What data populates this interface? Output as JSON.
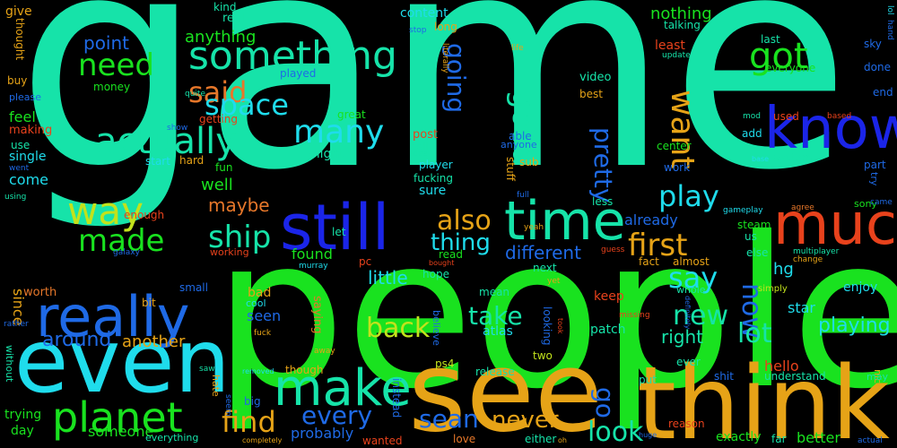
{
  "words": [
    {
      "text": "game",
      "color": "#16e3a9"
    },
    {
      "text": "people",
      "color": "#19e21f"
    },
    {
      "text": "see",
      "color": "#e6a317"
    },
    {
      "text": "think",
      "color": "#e6a317"
    },
    {
      "text": "even",
      "color": "#1fdcec"
    },
    {
      "text": "know",
      "color": "#1b25e8"
    },
    {
      "text": "still",
      "color": "#1b25e8"
    },
    {
      "text": "time",
      "color": "#16e3a9"
    },
    {
      "text": "much",
      "color": "#e8421c"
    },
    {
      "text": "really",
      "color": "#1f6ae6"
    },
    {
      "text": "make",
      "color": "#16e3a9"
    },
    {
      "text": "planet",
      "color": "#19e21f"
    },
    {
      "text": "actually",
      "color": "#16e3a9"
    },
    {
      "text": "something",
      "color": "#16e3a9"
    },
    {
      "text": "way",
      "color": "#c2e21c"
    },
    {
      "text": "made",
      "color": "#19e21f"
    },
    {
      "text": "need",
      "color": "#19e21f"
    },
    {
      "text": "said",
      "color": "#e6772a"
    },
    {
      "text": "space",
      "color": "#1fdcec"
    },
    {
      "text": "ship",
      "color": "#16e3a9"
    },
    {
      "text": "many",
      "color": "#1fdcec"
    },
    {
      "text": "got",
      "color": "#19e21f"
    },
    {
      "text": "want",
      "color": "#e6a317"
    },
    {
      "text": "good",
      "color": "#16e3a9"
    },
    {
      "text": "going",
      "color": "#1f6ae6"
    },
    {
      "text": "pretty",
      "color": "#1f6ae6"
    },
    {
      "text": "play",
      "color": "#1fdcec"
    },
    {
      "text": "first",
      "color": "#e6a317"
    },
    {
      "text": "say",
      "color": "#1fdcec"
    },
    {
      "text": "also",
      "color": "#e6a317"
    },
    {
      "text": "thing",
      "color": "#1fdcec"
    },
    {
      "text": "new",
      "color": "#16e3a9"
    },
    {
      "text": "now",
      "color": "#1f6ae6"
    },
    {
      "text": "lot",
      "color": "#16e3a9"
    },
    {
      "text": "back",
      "color": "#c2e21c"
    },
    {
      "text": "take",
      "color": "#16e3a9"
    },
    {
      "text": "find",
      "color": "#e6a317"
    },
    {
      "text": "every",
      "color": "#1f6ae6"
    },
    {
      "text": "sean",
      "color": "#1f6ae6"
    },
    {
      "text": "never",
      "color": "#e6a317"
    },
    {
      "text": "go",
      "color": "#1f6ae6"
    },
    {
      "text": "look",
      "color": "#16e3a9"
    },
    {
      "text": "playing",
      "color": "#1fdcec"
    },
    {
      "text": "right",
      "color": "#16e3a9"
    },
    {
      "text": "around",
      "color": "#1f6ae6"
    },
    {
      "text": "another",
      "color": "#e6a317"
    },
    {
      "text": "different",
      "color": "#1f6ae6"
    },
    {
      "text": "little",
      "color": "#1fdcec"
    },
    {
      "text": "found",
      "color": "#19e21f"
    },
    {
      "text": "maybe",
      "color": "#e6772a"
    },
    {
      "text": "well",
      "color": "#19e21f"
    },
    {
      "text": "point",
      "color": "#1f6ae6"
    },
    {
      "text": "anything",
      "color": "#19e21f"
    },
    {
      "text": "nothing",
      "color": "#19e21f"
    },
    {
      "text": "already",
      "color": "#1f6ae6"
    },
    {
      "text": "hg",
      "color": "#1fdcec"
    },
    {
      "text": "enjoy",
      "color": "#1fdcec"
    },
    {
      "text": "star",
      "color": "#1fdcec"
    },
    {
      "text": "hello",
      "color": "#e8421c"
    },
    {
      "text": "better",
      "color": "#19e21f"
    },
    {
      "text": "exactly",
      "color": "#19e21f"
    },
    {
      "text": "probably",
      "color": "#1f6ae6"
    },
    {
      "text": "someone",
      "color": "#19e21f"
    },
    {
      "text": "trying",
      "color": "#19e21f"
    },
    {
      "text": "day",
      "color": "#19e21f"
    },
    {
      "text": "since",
      "color": "#e6a317"
    },
    {
      "text": "worth",
      "color": "#e6772a"
    },
    {
      "text": "come",
      "color": "#1fdcec"
    },
    {
      "text": "feel",
      "color": "#19e21f"
    },
    {
      "text": "single",
      "color": "#1fdcec"
    },
    {
      "text": "making",
      "color": "#e8421c"
    },
    {
      "text": "use",
      "color": "#16e3a9"
    },
    {
      "text": "bad",
      "color": "#e6a317"
    },
    {
      "text": "seen",
      "color": "#1f6ae6"
    },
    {
      "text": "give",
      "color": "#e6a317"
    },
    {
      "text": "content",
      "color": "#1fdcec"
    },
    {
      "text": "kind",
      "color": "#16e3a9"
    },
    {
      "text": "real",
      "color": "#16e3a9"
    },
    {
      "text": "long",
      "color": "#e6a317"
    },
    {
      "text": "least",
      "color": "#e8421c"
    },
    {
      "text": "last",
      "color": "#16e3a9"
    },
    {
      "text": "everyone",
      "color": "#19e21f"
    },
    {
      "text": "used",
      "color": "#e8421c"
    },
    {
      "text": "add",
      "color": "#1fdcec"
    },
    {
      "text": "system",
      "color": "#16e3a9"
    },
    {
      "text": "center",
      "color": "#19e21f"
    },
    {
      "text": "part",
      "color": "#1f6ae6"
    },
    {
      "text": "work",
      "color": "#1f6ae6"
    },
    {
      "text": "end",
      "color": "#1f6ae6"
    },
    {
      "text": "done",
      "color": "#1f6ae6"
    },
    {
      "text": "sky",
      "color": "#1f6ae6"
    },
    {
      "text": "steam",
      "color": "#19e21f"
    },
    {
      "text": "us",
      "color": "#16e3a9"
    },
    {
      "text": "else",
      "color": "#16e3a9"
    },
    {
      "text": "almost",
      "color": "#e6a317"
    },
    {
      "text": "fact",
      "color": "#e6a317"
    },
    {
      "text": "next",
      "color": "#16e3a9"
    },
    {
      "text": "hope",
      "color": "#16e3a9"
    },
    {
      "text": "mean",
      "color": "#16e3a9"
    },
    {
      "text": "keep",
      "color": "#e8421c"
    },
    {
      "text": "patch",
      "color": "#16e3a9"
    },
    {
      "text": "atlas",
      "color": "#1fdcec"
    },
    {
      "text": "looking",
      "color": "#1f6ae6"
    },
    {
      "text": "release",
      "color": "#16e3a9"
    },
    {
      "text": "two",
      "color": "#c2e21c"
    },
    {
      "text": "ps4",
      "color": "#c2e21c"
    },
    {
      "text": "though",
      "color": "#e6a317"
    },
    {
      "text": "big",
      "color": "#1f6ae6"
    },
    {
      "text": "instead",
      "color": "#1f6ae6"
    },
    {
      "text": "love",
      "color": "#e6772a"
    },
    {
      "text": "either",
      "color": "#16e3a9"
    },
    {
      "text": "ever",
      "color": "#16e3a9"
    },
    {
      "text": "put",
      "color": "#16e3a9"
    },
    {
      "text": "shit",
      "color": "#1f6ae6"
    },
    {
      "text": "understand",
      "color": "#16e3a9"
    },
    {
      "text": "far",
      "color": "#16e3a9"
    },
    {
      "text": "video",
      "color": "#16e3a9"
    },
    {
      "text": "best",
      "color": "#e6a317"
    },
    {
      "text": "played",
      "color": "#1f6ae6"
    },
    {
      "text": "money",
      "color": "#19e21f"
    },
    {
      "text": "buy",
      "color": "#e6a317"
    },
    {
      "text": "thought",
      "color": "#e6a317"
    },
    {
      "text": "great",
      "color": "#19e21f"
    },
    {
      "text": "getting",
      "color": "#e8421c"
    },
    {
      "text": "fun",
      "color": "#19e21f"
    },
    {
      "text": "hard",
      "color": "#e6a317"
    },
    {
      "text": "start",
      "color": "#1fdcec"
    },
    {
      "text": "might",
      "color": "#16e3a9"
    },
    {
      "text": "post",
      "color": "#e8421c"
    },
    {
      "text": "player",
      "color": "#1fdcec"
    },
    {
      "text": "fucking",
      "color": "#16e3a9"
    },
    {
      "text": "sure",
      "color": "#1fdcec"
    },
    {
      "text": "stuff",
      "color": "#e6a317"
    },
    {
      "text": "able",
      "color": "#1f6ae6"
    },
    {
      "text": "sub",
      "color": "#e6a317"
    },
    {
      "text": "less",
      "color": "#16e3a9"
    },
    {
      "text": "pc",
      "color": "#e8421c"
    },
    {
      "text": "let",
      "color": "#16e3a9"
    },
    {
      "text": "read",
      "color": "#19e21f"
    },
    {
      "text": "small",
      "color": "#1f6ae6"
    },
    {
      "text": "bit",
      "color": "#e6a317"
    },
    {
      "text": "cool",
      "color": "#1fdcec"
    },
    {
      "text": "enough",
      "color": "#e8421c"
    },
    {
      "text": "working",
      "color": "#e8421c"
    },
    {
      "text": "saying",
      "color": "#e6772a"
    },
    {
      "text": "whole",
      "color": "#16e3a9"
    },
    {
      "text": "simply",
      "color": "#c2e21c"
    },
    {
      "text": "talking",
      "color": "#16e3a9"
    },
    {
      "text": "anyone",
      "color": "#1f6ae6"
    },
    {
      "text": "tell",
      "color": "#16e3a9"
    },
    {
      "text": "sony",
      "color": "#19e21f"
    },
    {
      "text": "without",
      "color": "#16e3a9"
    },
    {
      "text": "rather",
      "color": "#1f6ae6"
    },
    {
      "text": "please",
      "color": "#1f6ae6"
    },
    {
      "text": "went",
      "color": "#1f6ae6"
    },
    {
      "text": "using",
      "color": "#16e3a9"
    },
    {
      "text": "quite",
      "color": "#16e3a9"
    },
    {
      "text": "show",
      "color": "#1f6ae6"
    },
    {
      "text": "stop",
      "color": "#1f6ae6"
    },
    {
      "text": "literally",
      "color": "#e6a317"
    },
    {
      "text": "life",
      "color": "#e6a317"
    },
    {
      "text": "update",
      "color": "#16e3a9"
    },
    {
      "text": "mod",
      "color": "#16e3a9"
    },
    {
      "text": "based",
      "color": "#e8421c"
    },
    {
      "text": "base",
      "color": "#1fdcec"
    },
    {
      "text": "change",
      "color": "#e6a317"
    },
    {
      "text": "multiplayer",
      "color": "#16e3a9"
    },
    {
      "text": "gameplay",
      "color": "#1fdcec"
    },
    {
      "text": "agree",
      "color": "#e6772a"
    },
    {
      "text": "came",
      "color": "#1f6ae6"
    },
    {
      "text": "try",
      "color": "#1f6ae6"
    },
    {
      "text": "nice",
      "color": "#e6a317"
    },
    {
      "text": "may",
      "color": "#16e3a9"
    },
    {
      "text": "actual",
      "color": "#1f6ae6"
    },
    {
      "text": "lol",
      "color": "#1fdcec"
    },
    {
      "text": "hand",
      "color": "#1f6ae6"
    },
    {
      "text": "guess",
      "color": "#e8421c"
    },
    {
      "text": "bought",
      "color": "#e8421c"
    },
    {
      "text": "galaxy",
      "color": "#1f6ae6"
    },
    {
      "text": "murray",
      "color": "#1fdcec"
    },
    {
      "text": "full",
      "color": "#1f6ae6"
    },
    {
      "text": "yeah",
      "color": "#e6a317"
    },
    {
      "text": "idea",
      "color": "#16e3a9"
    },
    {
      "text": "yet",
      "color": "#e6a317"
    },
    {
      "text": "missing",
      "color": "#e8421c"
    },
    {
      "text": "took",
      "color": "#e8421c"
    },
    {
      "text": "definitely",
      "color": "#1f6ae6"
    },
    {
      "text": "reason",
      "color": "#e8421c"
    },
    {
      "text": "huge",
      "color": "#1f6ae6"
    },
    {
      "text": "oh",
      "color": "#e6a317"
    },
    {
      "text": "believe",
      "color": "#1f6ae6"
    },
    {
      "text": "away",
      "color": "#e6a317"
    },
    {
      "text": "fuck",
      "color": "#e6a317"
    },
    {
      "text": "removed",
      "color": "#1fdcec"
    },
    {
      "text": "completely",
      "color": "#e6a317"
    },
    {
      "text": "hate",
      "color": "#e6a317"
    },
    {
      "text": "seem",
      "color": "#1f6ae6"
    },
    {
      "text": "saw",
      "color": "#16e3a9"
    },
    {
      "text": "everything",
      "color": "#16e3a9"
    },
    {
      "text": "wanted",
      "color": "#e8421c"
    }
  ]
}
